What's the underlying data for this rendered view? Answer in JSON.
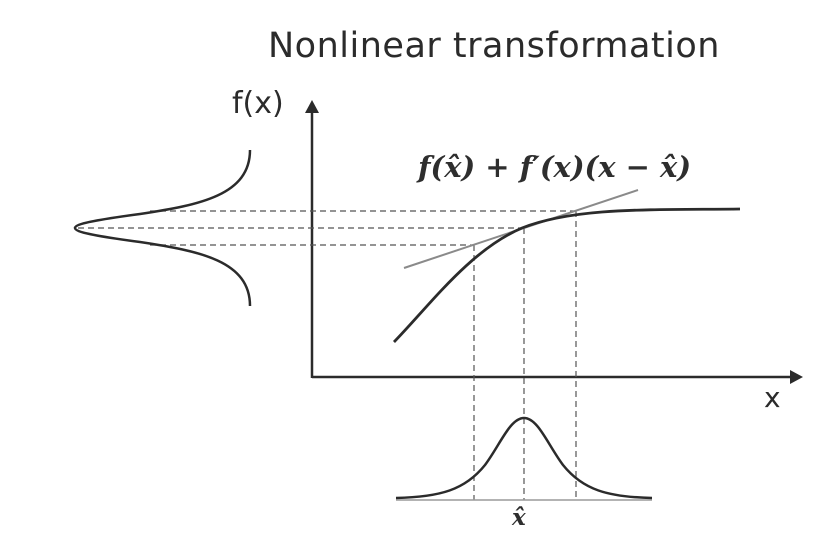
{
  "title": "Nonlinear transformation",
  "axes": {
    "y_label": "f(x)",
    "x_label": "x"
  },
  "linearization_label": "f(x̂) + f′(x)(x − x̂)",
  "input_mean_label": "x̂",
  "colors": {
    "ink": "#2b2b2b",
    "tangent": "#8a8a8a",
    "guide": "#555555"
  }
}
